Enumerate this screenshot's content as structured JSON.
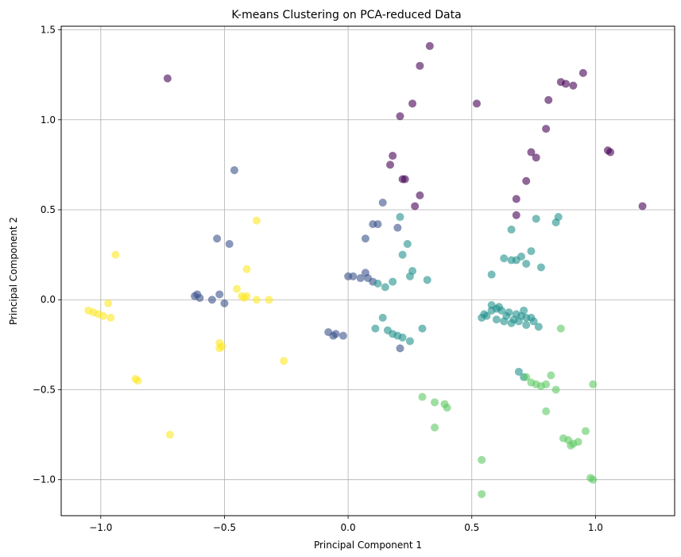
{
  "chart_data": {
    "type": "scatter",
    "title": "K-means Clustering on PCA-reduced Data",
    "xlabel": "Principal Component 1",
    "ylabel": "Principal Component 2",
    "xlim": [
      -1.16,
      1.32
    ],
    "ylim": [
      -1.2,
      1.52
    ],
    "xticks": [
      -1.0,
      -0.5,
      0.0,
      0.5,
      1.0
    ],
    "xtick_labels": [
      "−1.0",
      "−0.5",
      "0.0",
      "0.5",
      "1.0"
    ],
    "yticks": [
      -1.0,
      -0.5,
      0.0,
      0.5,
      1.0,
      1.5
    ],
    "ytick_labels": [
      "−1.0",
      "−0.5",
      "0.0",
      "0.5",
      "1.0",
      "1.5"
    ],
    "grid": true,
    "legend": "none",
    "colormap": "viridis",
    "series": [
      {
        "cluster": 0,
        "color": "#440154",
        "points": [
          [
            -0.73,
            1.23
          ],
          [
            0.33,
            1.41
          ],
          [
            0.29,
            1.3
          ],
          [
            0.26,
            1.09
          ],
          [
            0.21,
            1.02
          ],
          [
            0.52,
            1.09
          ],
          [
            0.95,
            1.26
          ],
          [
            0.86,
            1.21
          ],
          [
            0.88,
            1.2
          ],
          [
            0.91,
            1.19
          ],
          [
            0.81,
            1.11
          ],
          [
            0.8,
            0.95
          ],
          [
            0.74,
            0.82
          ],
          [
            1.05,
            0.83
          ],
          [
            1.06,
            0.82
          ],
          [
            0.18,
            0.8
          ],
          [
            0.17,
            0.75
          ],
          [
            0.72,
            0.66
          ],
          [
            0.29,
            0.58
          ],
          [
            0.68,
            0.56
          ],
          [
            1.19,
            0.52
          ],
          [
            0.27,
            0.52
          ],
          [
            0.22,
            0.67
          ],
          [
            0.76,
            0.79
          ],
          [
            0.23,
            0.67
          ],
          [
            0.68,
            0.47
          ]
        ]
      },
      {
        "cluster": 1,
        "color": "#3b528b",
        "points": [
          [
            -0.46,
            0.72
          ],
          [
            -0.53,
            0.34
          ],
          [
            -0.48,
            0.31
          ],
          [
            -0.61,
            0.03
          ],
          [
            -0.6,
            0.01
          ],
          [
            -0.62,
            0.02
          ],
          [
            -0.55,
            0.0
          ],
          [
            -0.52,
            0.03
          ],
          [
            -0.5,
            -0.02
          ],
          [
            0.07,
            0.34
          ],
          [
            0.1,
            0.42
          ],
          [
            0.12,
            0.42
          ],
          [
            0.14,
            0.54
          ],
          [
            0.2,
            0.4
          ],
          [
            0.0,
            0.13
          ],
          [
            0.02,
            0.13
          ],
          [
            0.05,
            0.12
          ],
          [
            0.07,
            0.15
          ],
          [
            0.1,
            0.1
          ],
          [
            0.08,
            0.12
          ],
          [
            -0.08,
            -0.18
          ],
          [
            -0.06,
            -0.2
          ],
          [
            -0.05,
            -0.19
          ],
          [
            -0.02,
            -0.2
          ],
          [
            0.21,
            -0.27
          ]
        ]
      },
      {
        "cluster": 2,
        "color": "#21918c",
        "points": [
          [
            0.21,
            0.46
          ],
          [
            0.24,
            0.31
          ],
          [
            0.22,
            0.25
          ],
          [
            0.26,
            0.16
          ],
          [
            0.25,
            0.13
          ],
          [
            0.18,
            0.1
          ],
          [
            0.32,
            0.11
          ],
          [
            0.15,
            0.07
          ],
          [
            0.12,
            0.09
          ],
          [
            0.14,
            -0.1
          ],
          [
            0.11,
            -0.16
          ],
          [
            0.16,
            -0.17
          ],
          [
            0.18,
            -0.19
          ],
          [
            0.3,
            -0.16
          ],
          [
            0.2,
            -0.2
          ],
          [
            0.22,
            -0.21
          ],
          [
            0.25,
            -0.23
          ],
          [
            0.58,
            0.14
          ],
          [
            0.63,
            0.23
          ],
          [
            0.66,
            0.22
          ],
          [
            0.68,
            0.22
          ],
          [
            0.72,
            0.2
          ],
          [
            0.74,
            0.27
          ],
          [
            0.7,
            0.24
          ],
          [
            0.78,
            0.18
          ],
          [
            0.76,
            0.45
          ],
          [
            0.84,
            0.43
          ],
          [
            0.66,
            0.39
          ],
          [
            0.85,
            0.46
          ],
          [
            0.58,
            -0.03
          ],
          [
            0.6,
            -0.05
          ],
          [
            0.62,
            -0.06
          ],
          [
            0.65,
            -0.07
          ],
          [
            0.68,
            -0.08
          ],
          [
            0.7,
            -0.09
          ],
          [
            0.72,
            -0.1
          ],
          [
            0.74,
            -0.1
          ],
          [
            0.56,
            -0.09
          ],
          [
            0.54,
            -0.1
          ],
          [
            0.6,
            -0.11
          ],
          [
            0.63,
            -0.12
          ],
          [
            0.66,
            -0.13
          ],
          [
            0.69,
            -0.12
          ],
          [
            0.72,
            -0.14
          ],
          [
            0.77,
            -0.15
          ],
          [
            0.58,
            -0.06
          ],
          [
            0.61,
            -0.04
          ],
          [
            0.64,
            -0.09
          ],
          [
            0.67,
            -0.11
          ],
          [
            0.71,
            -0.06
          ],
          [
            0.75,
            -0.12
          ],
          [
            0.55,
            -0.08
          ],
          [
            0.69,
            -0.4
          ],
          [
            0.71,
            -0.43
          ]
        ]
      },
      {
        "cluster": 3,
        "color": "#5ec962",
        "points": [
          [
            0.86,
            -0.16
          ],
          [
            0.72,
            -0.43
          ],
          [
            0.74,
            -0.46
          ],
          [
            0.76,
            -0.47
          ],
          [
            0.78,
            -0.48
          ],
          [
            0.8,
            -0.47
          ],
          [
            0.82,
            -0.42
          ],
          [
            0.84,
            -0.5
          ],
          [
            0.99,
            -0.47
          ],
          [
            0.8,
            -0.62
          ],
          [
            0.3,
            -0.54
          ],
          [
            0.35,
            -0.57
          ],
          [
            0.39,
            -0.58
          ],
          [
            0.4,
            -0.6
          ],
          [
            0.35,
            -0.71
          ],
          [
            0.87,
            -0.77
          ],
          [
            0.89,
            -0.78
          ],
          [
            0.91,
            -0.8
          ],
          [
            0.93,
            -0.79
          ],
          [
            0.96,
            -0.73
          ],
          [
            0.9,
            -0.81
          ],
          [
            0.54,
            -0.89
          ],
          [
            0.98,
            -0.99
          ],
          [
            0.99,
            -1.0
          ],
          [
            0.54,
            -1.08
          ]
        ]
      },
      {
        "cluster": 4,
        "color": "#fde725",
        "points": [
          [
            -1.05,
            -0.06
          ],
          [
            -1.03,
            -0.07
          ],
          [
            -1.01,
            -0.08
          ],
          [
            -0.99,
            -0.09
          ],
          [
            -0.97,
            -0.02
          ],
          [
            -0.96,
            -0.1
          ],
          [
            -0.94,
            0.25
          ],
          [
            -0.37,
            0.44
          ],
          [
            -0.41,
            0.17
          ],
          [
            -0.45,
            0.06
          ],
          [
            -0.43,
            0.02
          ],
          [
            -0.42,
            0.01
          ],
          [
            -0.41,
            0.02
          ],
          [
            -0.37,
            0.0
          ],
          [
            -0.32,
            0.0
          ],
          [
            -0.52,
            -0.24
          ],
          [
            -0.51,
            -0.26
          ],
          [
            -0.52,
            -0.27
          ],
          [
            -0.26,
            -0.34
          ],
          [
            -0.86,
            -0.44
          ],
          [
            -0.85,
            -0.45
          ],
          [
            -0.72,
            -0.75
          ]
        ]
      }
    ]
  }
}
